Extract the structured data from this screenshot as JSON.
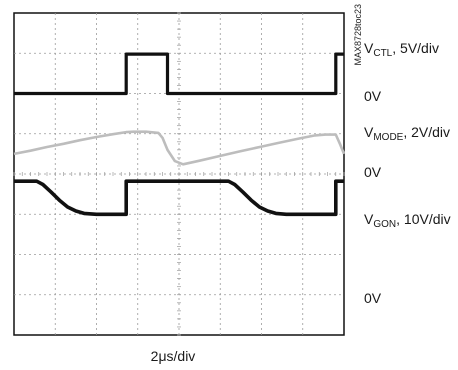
{
  "figure_id": "MAX8728toc23",
  "time_base": "2μs/div",
  "chart_data": {
    "type": "line",
    "title": "",
    "xlabel": "2μs/div",
    "ylabel": "",
    "x_divisions": 8,
    "y_divisions": 8,
    "grid": true,
    "grid_style": "dotted",
    "x_unit": "div",
    "y_unit": "div",
    "xlim": [
      0,
      8
    ],
    "ylim": [
      0,
      8
    ],
    "series": [
      {
        "name": "V_CTL",
        "subscript": "CTL",
        "scale": "5V/div",
        "zero_label": "0V",
        "zero_level_div": 6.0,
        "color": "#111111",
        "points": [
          [
            0,
            6.0
          ],
          [
            2.72,
            6.0
          ],
          [
            2.72,
            6.98
          ],
          [
            3.72,
            6.98
          ],
          [
            3.72,
            6.0
          ],
          [
            7.8,
            6.0
          ],
          [
            7.8,
            6.98
          ],
          [
            8,
            6.98
          ]
        ]
      },
      {
        "name": "V_MODE",
        "subscript": "MODE",
        "scale": "2V/div",
        "zero_label": "0V",
        "zero_level_div": 4.0,
        "color": "#bdbdbd",
        "points": [
          [
            0,
            4.5
          ],
          [
            0.4,
            4.58
          ],
          [
            0.8,
            4.67
          ],
          [
            1.2,
            4.75
          ],
          [
            1.6,
            4.84
          ],
          [
            2.0,
            4.92
          ],
          [
            2.4,
            4.99
          ],
          [
            2.72,
            5.04
          ],
          [
            2.9,
            5.05
          ],
          [
            3.2,
            5.05
          ],
          [
            3.5,
            5.02
          ],
          [
            3.6,
            4.9
          ],
          [
            3.72,
            4.6
          ],
          [
            3.9,
            4.32
          ],
          [
            4.1,
            4.24
          ],
          [
            4.5,
            4.33
          ],
          [
            5.0,
            4.45
          ],
          [
            5.5,
            4.57
          ],
          [
            6.0,
            4.68
          ],
          [
            6.4,
            4.77
          ],
          [
            6.9,
            4.88
          ],
          [
            7.3,
            4.96
          ],
          [
            7.55,
            4.98
          ],
          [
            7.8,
            4.98
          ],
          [
            7.9,
            4.75
          ],
          [
            8,
            4.5
          ]
        ]
      },
      {
        "name": "V_GON",
        "subscript": "GON",
        "scale": "10V/div",
        "zero_label": "0V",
        "zero_level_div": 1.0,
        "color": "#111111",
        "points": [
          [
            0,
            3.82
          ],
          [
            0.55,
            3.82
          ],
          [
            0.7,
            3.74
          ],
          [
            0.9,
            3.55
          ],
          [
            1.1,
            3.35
          ],
          [
            1.3,
            3.18
          ],
          [
            1.5,
            3.08
          ],
          [
            1.7,
            3.02
          ],
          [
            2.0,
            3.0
          ],
          [
            2.72,
            3.0
          ],
          [
            2.72,
            3.82
          ],
          [
            5.2,
            3.82
          ],
          [
            5.35,
            3.74
          ],
          [
            5.55,
            3.55
          ],
          [
            5.75,
            3.35
          ],
          [
            5.95,
            3.18
          ],
          [
            6.15,
            3.08
          ],
          [
            6.35,
            3.02
          ],
          [
            6.6,
            3.0
          ],
          [
            7.8,
            3.0
          ],
          [
            7.8,
            3.82
          ],
          [
            8,
            3.82
          ]
        ]
      }
    ]
  }
}
